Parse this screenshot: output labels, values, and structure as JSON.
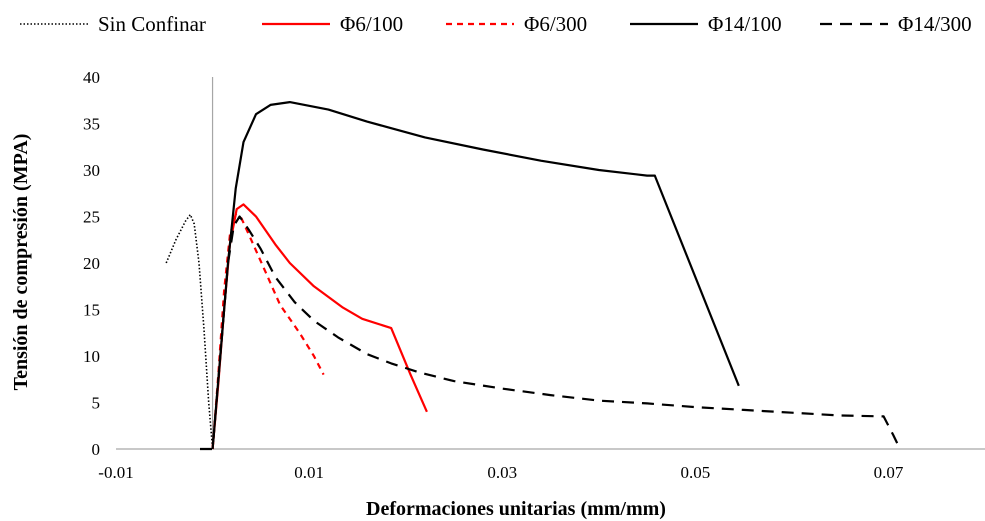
{
  "chart_data": {
    "type": "line",
    "title": "",
    "xlabel": "Deformaciones unitarias  (mm/mm)",
    "ylabel": "Tensión de compresión (MPA)",
    "xlim": [
      -0.01,
      0.08
    ],
    "ylim": [
      0,
      40
    ],
    "xticks": [
      -0.01,
      0.01,
      0.03,
      0.05,
      0.07
    ],
    "xtick_labels": [
      "-0.01",
      "0.01",
      "0.03",
      "0.05",
      "0.07"
    ],
    "yticks": [
      0,
      5,
      10,
      15,
      20,
      25,
      30,
      35,
      40
    ],
    "ytick_labels": [
      "0",
      "5",
      "10",
      "15",
      "20",
      "25",
      "30",
      "35",
      "40"
    ],
    "grid": false,
    "legend_position": "top",
    "colors": {
      "black": "#000000",
      "red": "#ff0000",
      "axis": "#a6a6a6"
    },
    "series": [
      {
        "name": "Sin Confinar",
        "color": "#000000",
        "dash": "dotted",
        "x": [
          -0.0048,
          -0.0038,
          -0.0028,
          -0.0023,
          -0.0019,
          -0.0014,
          -0.0009,
          -0.0004,
          0.0
        ],
        "y": [
          20,
          22.5,
          24.5,
          25.2,
          24.2,
          20,
          13,
          5,
          0
        ]
      },
      {
        "name": "Φ6/100",
        "color": "#ff0000",
        "dash": "solid",
        "x": [
          0.0,
          0.0006,
          0.0012,
          0.0018,
          0.0025,
          0.0032,
          0.0045,
          0.0065,
          0.008,
          0.0105,
          0.0135,
          0.0155,
          0.0185,
          0.0205,
          0.0222
        ],
        "y": [
          0,
          7,
          15,
          22,
          25.8,
          26.3,
          25,
          22,
          20,
          17.5,
          15.2,
          14,
          13,
          8,
          4
        ]
      },
      {
        "name": "Φ6/300",
        "color": "#ff0000",
        "dash": "dashed",
        "x": [
          0.0,
          0.0006,
          0.0012,
          0.0018,
          0.0024,
          0.003,
          0.004,
          0.0055,
          0.007,
          0.009,
          0.0105,
          0.0115
        ],
        "y": [
          0,
          8,
          17,
          23,
          25.2,
          24.8,
          22.5,
          19,
          15.5,
          12.5,
          10,
          8
        ]
      },
      {
        "name": "Φ14/100",
        "color": "#000000",
        "dash": "solid",
        "x": [
          0.0,
          0.0008,
          0.0016,
          0.0024,
          0.0032,
          0.0045,
          0.006,
          0.008,
          0.012,
          0.016,
          0.022,
          0.028,
          0.034,
          0.04,
          0.045,
          0.0458,
          0.0545
        ],
        "y": [
          0,
          10,
          20,
          28,
          33,
          36,
          37,
          37.3,
          36.5,
          35.2,
          33.5,
          32.2,
          31,
          30,
          29.4,
          29.4,
          6.8
        ]
      },
      {
        "name": "Φ14/300",
        "color": "#000000",
        "dash": "longdash",
        "x": [
          -0.0013,
          0.0,
          0.0008,
          0.0016,
          0.0022,
          0.0028,
          0.0038,
          0.005,
          0.0065,
          0.0085,
          0.0105,
          0.013,
          0.016,
          0.0185,
          0.0215,
          0.025,
          0.03,
          0.035,
          0.04,
          0.045,
          0.05,
          0.055,
          0.06,
          0.065,
          0.0695,
          0.0705,
          0.0712
        ],
        "y": [
          0,
          0,
          10,
          20,
          24,
          25,
          23.5,
          21.5,
          18.5,
          15.8,
          13.8,
          12,
          10.2,
          9.2,
          8.2,
          7.3,
          6.5,
          5.8,
          5.2,
          4.9,
          4.5,
          4.2,
          3.9,
          3.6,
          3.5,
          1.5,
          0
        ]
      }
    ]
  }
}
